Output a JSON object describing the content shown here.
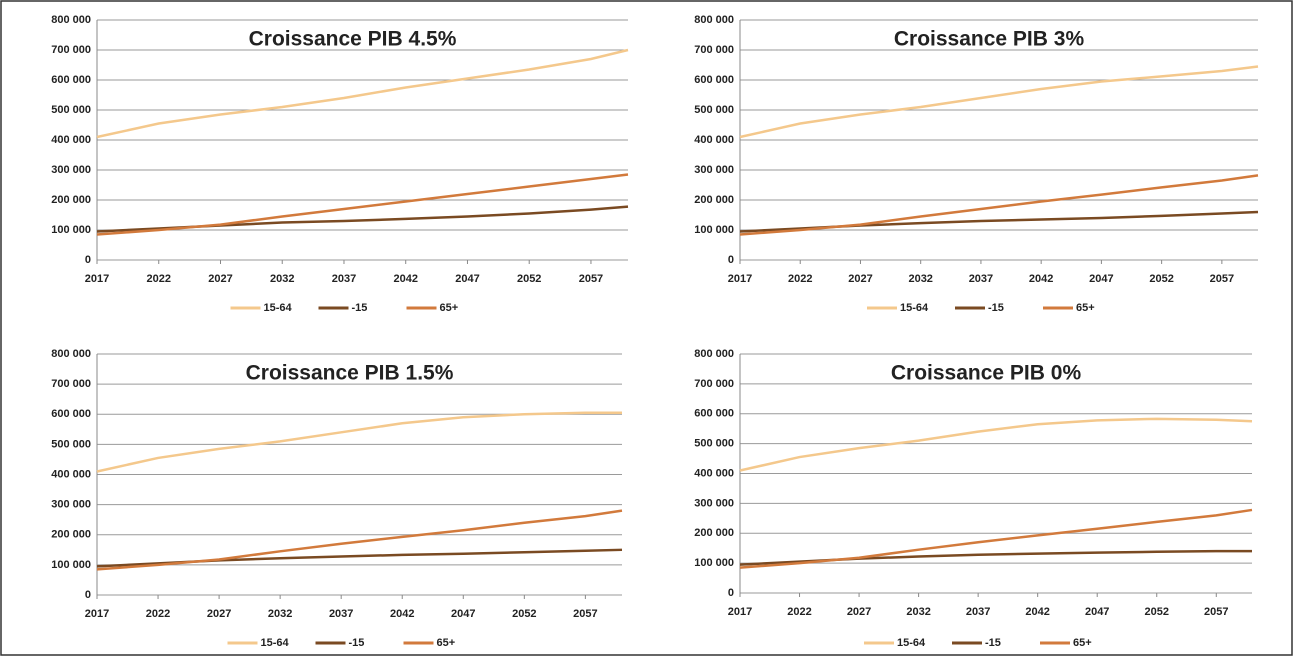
{
  "chart_data": [
    {
      "type": "line",
      "title": "Croissance PIB 4.5%",
      "x": [
        2017,
        2022,
        2027,
        2032,
        2037,
        2042,
        2047,
        2052,
        2057,
        2060
      ],
      "series": [
        {
          "name": "15-64",
          "color": "#f4c88c",
          "values": [
            410000,
            455000,
            485000,
            510000,
            540000,
            575000,
            605000,
            635000,
            670000,
            700000
          ]
        },
        {
          "name": "-15",
          "color": "#7a4a22",
          "values": [
            95000,
            105000,
            115000,
            125000,
            130000,
            137000,
            145000,
            155000,
            168000,
            178000
          ]
        },
        {
          "name": "65+",
          "color": "#d27a3c",
          "values": [
            85000,
            100000,
            118000,
            145000,
            170000,
            195000,
            220000,
            245000,
            270000,
            285000
          ]
        }
      ],
      "xlim": [
        2017,
        2060
      ],
      "xticks": [
        2017,
        2022,
        2027,
        2032,
        2037,
        2042,
        2047,
        2052,
        2057
      ],
      "ylim": [
        0,
        800000
      ],
      "yticks": [
        0,
        {
          "value": 100000,
          "label": "100 000"
        },
        {
          "value": 200000,
          "label": "200 000"
        },
        {
          "value": 300000,
          "label": "300 000"
        },
        {
          "value": 400000,
          "label": "400 000"
        },
        {
          "value": 500000,
          "label": "500 000"
        },
        {
          "value": 600000,
          "label": "600 000"
        },
        {
          "value": 700000,
          "label": "700 000"
        },
        {
          "value": 800000,
          "label": "800 000"
        }
      ],
      "grid": true,
      "legend": "bottom"
    },
    {
      "type": "line",
      "title": "Croissance PIB 3%",
      "x": [
        2017,
        2022,
        2027,
        2032,
        2037,
        2042,
        2047,
        2052,
        2057,
        2060
      ],
      "series": [
        {
          "name": "15-64",
          "color": "#f4c88c",
          "values": [
            410000,
            455000,
            485000,
            510000,
            540000,
            570000,
            595000,
            612000,
            630000,
            645000
          ]
        },
        {
          "name": "-15",
          "color": "#7a4a22",
          "values": [
            95000,
            105000,
            115000,
            123000,
            130000,
            135000,
            140000,
            147000,
            155000,
            160000
          ]
        },
        {
          "name": "65+",
          "color": "#d27a3c",
          "values": [
            85000,
            100000,
            118000,
            145000,
            170000,
            195000,
            218000,
            242000,
            265000,
            282000
          ]
        }
      ],
      "xlim": [
        2017,
        2060
      ],
      "xticks": [
        2017,
        2022,
        2027,
        2032,
        2037,
        2042,
        2047,
        2052,
        2057
      ],
      "ylim": [
        0,
        800000
      ],
      "yticks": [
        0,
        {
          "value": 100000,
          "label": "100 000"
        },
        {
          "value": 200000,
          "label": "200 000"
        },
        {
          "value": 300000,
          "label": "300 000"
        },
        {
          "value": 400000,
          "label": "400 000"
        },
        {
          "value": 500000,
          "label": "500 000"
        },
        {
          "value": 600000,
          "label": "600 000"
        },
        {
          "value": 700000,
          "label": "700 000"
        },
        {
          "value": 800000,
          "label": "800 000"
        }
      ],
      "grid": true,
      "legend": "bottom"
    },
    {
      "type": "line",
      "title": "Croissance PIB 1.5%",
      "x": [
        2017,
        2022,
        2027,
        2032,
        2037,
        2042,
        2047,
        2052,
        2057,
        2060
      ],
      "series": [
        {
          "name": "15-64",
          "color": "#f4c88c",
          "values": [
            410000,
            455000,
            485000,
            510000,
            540000,
            570000,
            590000,
            600000,
            605000,
            605000
          ]
        },
        {
          "name": "-15",
          "color": "#7a4a22",
          "values": [
            95000,
            105000,
            115000,
            122000,
            128000,
            133000,
            137000,
            142000,
            147000,
            150000
          ]
        },
        {
          "name": "65+",
          "color": "#d27a3c",
          "values": [
            85000,
            100000,
            118000,
            145000,
            170000,
            193000,
            215000,
            240000,
            262000,
            280000
          ]
        }
      ],
      "xlim": [
        2017,
        2060
      ],
      "xticks": [
        2017,
        2022,
        2027,
        2032,
        2037,
        2042,
        2047,
        2052,
        2057
      ],
      "ylim": [
        0,
        800000
      ],
      "yticks": [
        0,
        {
          "value": 100000,
          "label": "100 000"
        },
        {
          "value": 200000,
          "label": "200 000"
        },
        {
          "value": 300000,
          "label": "300 000"
        },
        {
          "value": 400000,
          "label": "400 000"
        },
        {
          "value": 500000,
          "label": "500 000"
        },
        {
          "value": 600000,
          "label": "600 000"
        },
        {
          "value": 700000,
          "label": "700 000"
        },
        {
          "value": 800000,
          "label": "800 000"
        }
      ],
      "grid": true,
      "legend": "bottom"
    },
    {
      "type": "line",
      "title": "Croissance PIB 0%",
      "x": [
        2017,
        2022,
        2027,
        2032,
        2037,
        2042,
        2047,
        2052,
        2057,
        2060
      ],
      "series": [
        {
          "name": "15-64",
          "color": "#f4c88c",
          "values": [
            410000,
            455000,
            485000,
            510000,
            540000,
            565000,
            578000,
            583000,
            580000,
            575000
          ]
        },
        {
          "name": "-15",
          "color": "#7a4a22",
          "values": [
            95000,
            105000,
            115000,
            122000,
            128000,
            132000,
            135000,
            138000,
            140000,
            140000
          ]
        },
        {
          "name": "65+",
          "color": "#d27a3c",
          "values": [
            85000,
            100000,
            118000,
            145000,
            170000,
            193000,
            215000,
            238000,
            260000,
            278000
          ]
        }
      ],
      "xlim": [
        2017,
        2060
      ],
      "xticks": [
        2017,
        2022,
        2027,
        2032,
        2037,
        2042,
        2047,
        2052,
        2057
      ],
      "ylim": [
        0,
        800000
      ],
      "yticks": [
        0,
        {
          "value": 100000,
          "label": "100 000"
        },
        {
          "value": 200000,
          "label": "200 000"
        },
        {
          "value": 300000,
          "label": "300 000"
        },
        {
          "value": 400000,
          "label": "400 000"
        },
        {
          "value": 500000,
          "label": "500 000"
        },
        {
          "value": 600000,
          "label": "600 000"
        },
        {
          "value": 700000,
          "label": "700 000"
        },
        {
          "value": 800000,
          "label": "800 000"
        }
      ],
      "grid": true,
      "legend": "bottom"
    }
  ]
}
